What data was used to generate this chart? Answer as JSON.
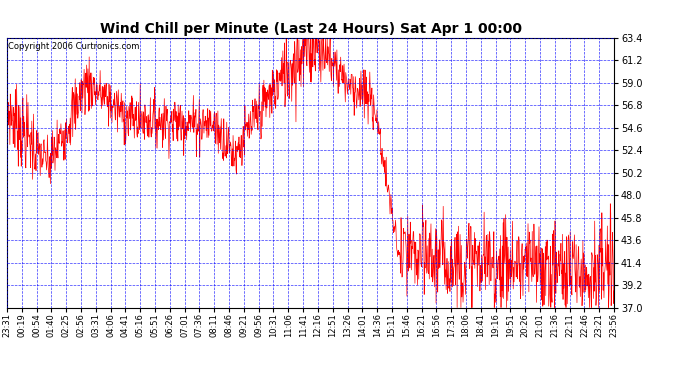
{
  "title": "Wind Chill per Minute (Last 24 Hours) Sat Apr 1 00:00",
  "copyright": "Copyright 2006 Curtronics.com",
  "ylim": [
    37.0,
    63.4
  ],
  "yticks": [
    37.0,
    39.2,
    41.4,
    43.6,
    45.8,
    48.0,
    50.2,
    52.4,
    54.6,
    56.8,
    59.0,
    61.2,
    63.4
  ],
  "background_color": "#ffffff",
  "line_color": "#ff0000",
  "grid_color": "#0000ff",
  "title_color": "#000000",
  "xtick_labels": [
    "23:31",
    "00:19",
    "00:54",
    "01:40",
    "02:25",
    "02:56",
    "03:31",
    "04:06",
    "04:41",
    "05:16",
    "05:51",
    "06:26",
    "07:01",
    "07:36",
    "08:11",
    "08:46",
    "09:21",
    "09:56",
    "10:31",
    "11:06",
    "11:41",
    "12:16",
    "12:51",
    "13:26",
    "14:01",
    "14:36",
    "15:11",
    "15:46",
    "16:21",
    "16:56",
    "17:31",
    "18:06",
    "18:41",
    "19:16",
    "19:51",
    "20:26",
    "21:01",
    "21:36",
    "22:11",
    "22:46",
    "23:21",
    "23:56"
  ]
}
